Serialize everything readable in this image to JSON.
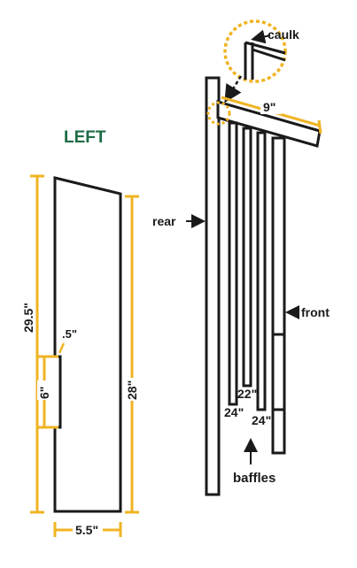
{
  "colors": {
    "accent": "#f0b323",
    "ink": "#1a1a1a",
    "title": "#1d6b43",
    "background": "#ffffff"
  },
  "left_panel": {
    "title": "LEFT",
    "dim_height": "29.5\"",
    "dim_right_height": "28\"",
    "dim_notch_depth": ".5\"",
    "dim_notch_height": "6\"",
    "dim_width": "5.5\""
  },
  "assembly": {
    "caulk_label": "caulk",
    "roof_dim": "9\"",
    "rear_label": "rear",
    "front_label": "front",
    "baffle_dims": [
      "24\"",
      "22\"",
      "24\""
    ],
    "baffles_label": "baffles"
  }
}
